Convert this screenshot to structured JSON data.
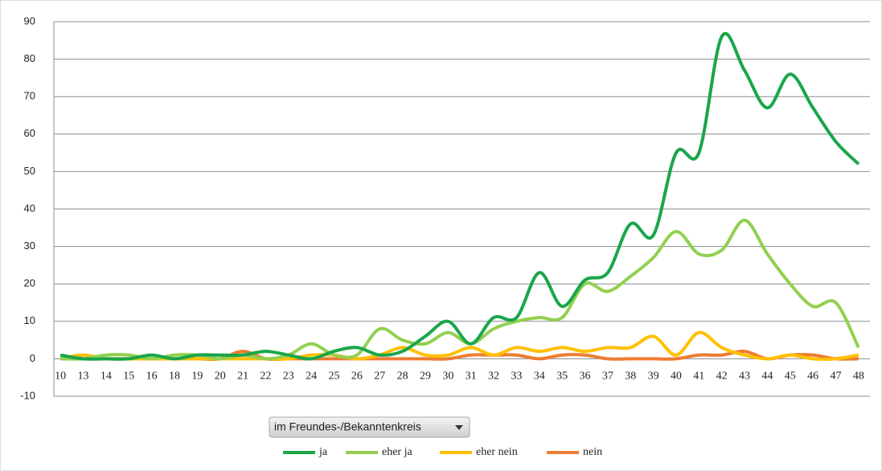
{
  "chart_data": {
    "type": "line",
    "categories": [
      "10",
      "13",
      "14",
      "15",
      "16",
      "18",
      "19",
      "20",
      "21",
      "22",
      "23",
      "24",
      "25",
      "26",
      "27",
      "28",
      "29",
      "30",
      "31",
      "32",
      "33",
      "34",
      "35",
      "36",
      "37",
      "38",
      "39",
      "40",
      "41",
      "42",
      "43",
      "44",
      "45",
      "46",
      "47",
      "48"
    ],
    "series": [
      {
        "name": "ja",
        "color": "#1aa64a",
        "values": [
          1,
          0,
          0,
          0,
          1,
          0,
          1,
          1,
          1,
          2,
          1,
          0,
          2,
          3,
          1,
          2,
          6,
          10,
          4,
          11,
          11,
          23,
          14,
          21,
          23,
          36,
          33,
          55,
          55,
          86,
          77,
          67,
          76,
          67,
          58,
          52
        ]
      },
      {
        "name": "eher ja",
        "color": "#92d050",
        "values": [
          0,
          0,
          1,
          1,
          0,
          1,
          1,
          0,
          1,
          0,
          1,
          4,
          1,
          1,
          8,
          5,
          4,
          7,
          4,
          8,
          10,
          11,
          11,
          20,
          18,
          22,
          27,
          34,
          28,
          29,
          37,
          28,
          20,
          14,
          15,
          3
        ]
      },
      {
        "name": "eher nein",
        "color": "#ffc000",
        "values": [
          0,
          1,
          0,
          0,
          0,
          0,
          0,
          0,
          0,
          0,
          0,
          1,
          1,
          0,
          1,
          3,
          1,
          1,
          3,
          1,
          3,
          2,
          3,
          2,
          3,
          3,
          6,
          1,
          7,
          3,
          1,
          0,
          1,
          0,
          0,
          1
        ]
      },
      {
        "name": "nein",
        "color": "#ed7d31",
        "values": [
          0,
          0,
          0,
          0,
          0,
          0,
          0,
          0,
          2,
          0,
          0,
          0,
          0,
          0,
          0,
          0,
          0,
          0,
          1,
          1,
          1,
          0,
          1,
          1,
          0,
          0,
          0,
          0,
          1,
          1,
          2,
          0,
          1,
          1,
          0,
          0
        ]
      }
    ],
    "ylim": [
      -10,
      90
    ],
    "yticks": [
      -10,
      0,
      10,
      20,
      30,
      40,
      50,
      60,
      70,
      80,
      90
    ],
    "grid": true,
    "legend": "bottom",
    "dropdown": "im Freundes-/Bekanntenkreis"
  }
}
